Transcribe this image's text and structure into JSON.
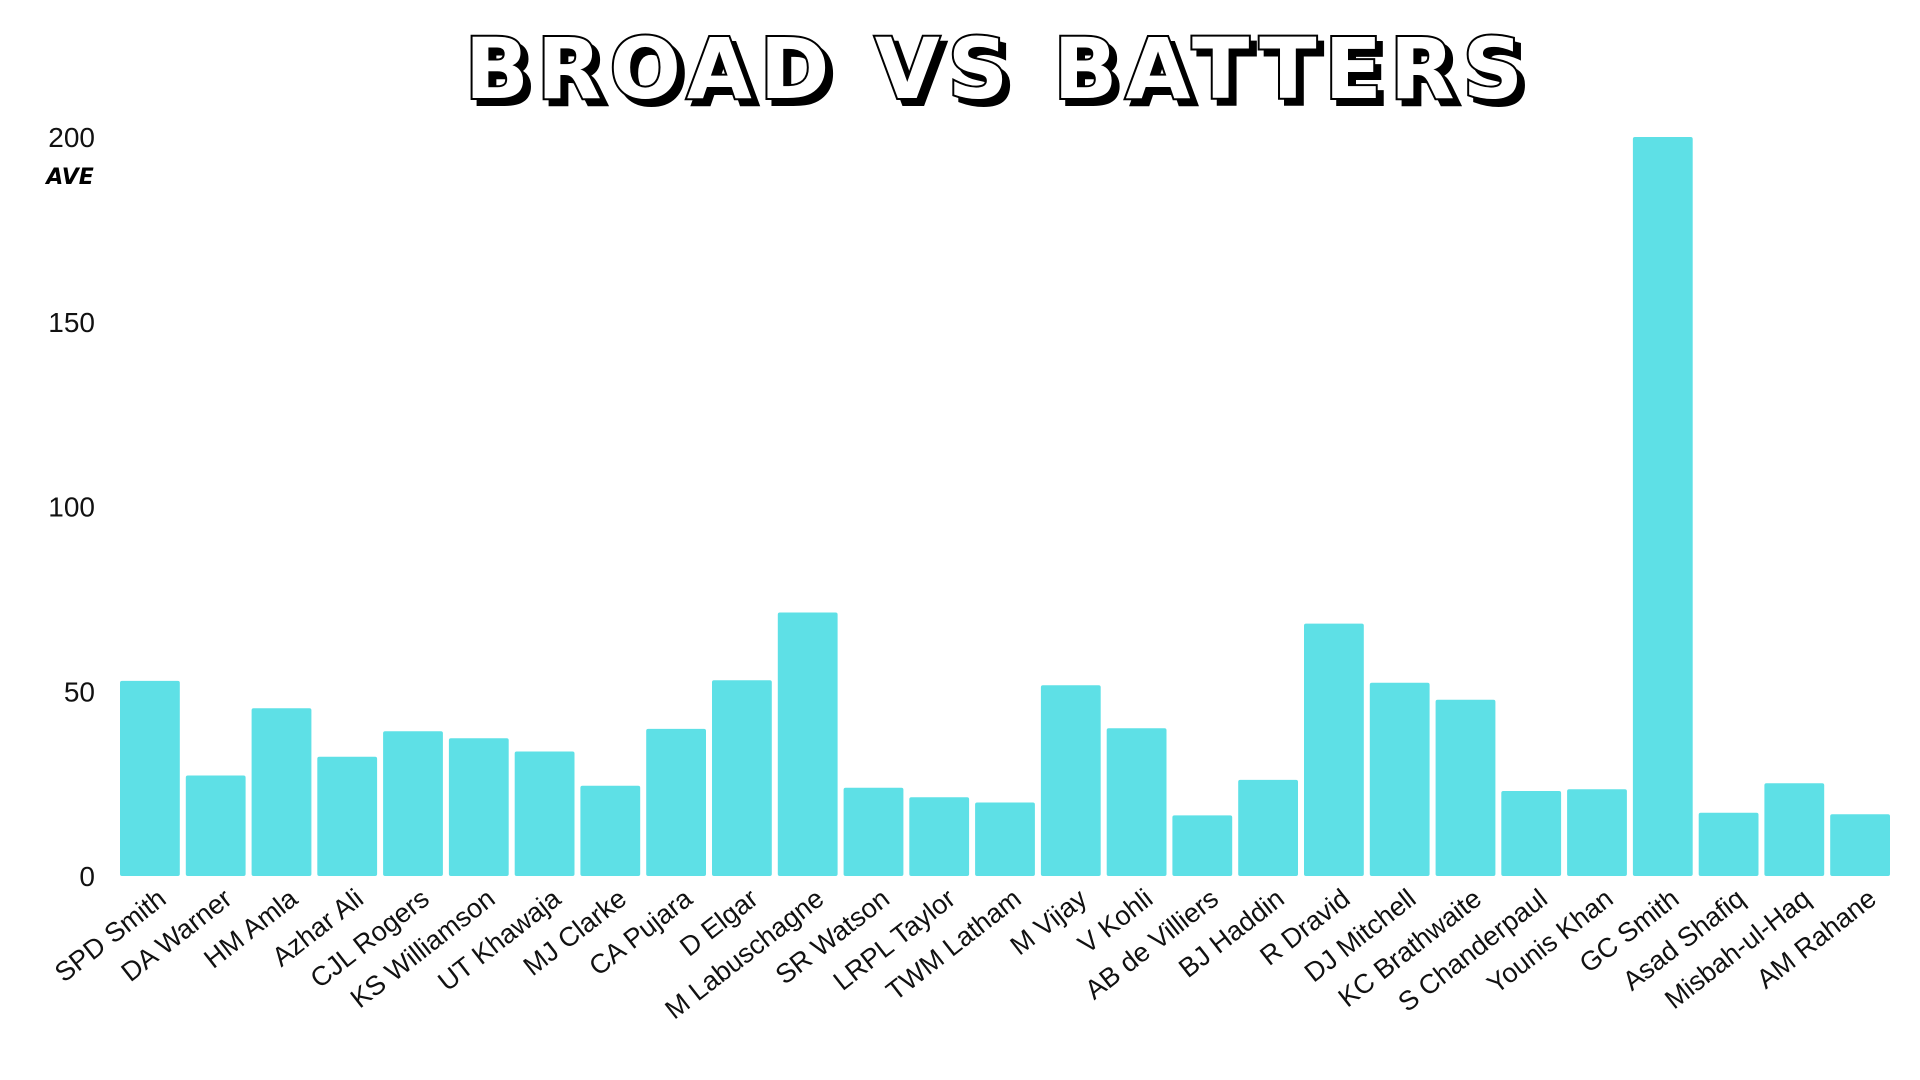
{
  "chart_data": {
    "type": "bar",
    "title": "BROAD VS BATTERS",
    "ylabel": "AVE",
    "xlabel": "",
    "ylim": [
      0,
      200
    ],
    "yticks": [
      0,
      50,
      100,
      150,
      200
    ],
    "grid": false,
    "bar_color": "#5ee0e6",
    "categories": [
      "SPD Smith",
      "DA Warner",
      "HM Amla",
      "Azhar Ali",
      "CJL Rogers",
      "KS Williamson",
      "UT Khawaja",
      "MJ Clarke",
      "CA Pujara",
      "D Elgar",
      "M Labuschagne",
      "SR Watson",
      "LRPL Taylor",
      "TWM Latham",
      "M Vijay",
      "V Kohli",
      "AB de Villiers",
      "BJ Haddin",
      "R Dravid",
      "DJ Mitchell",
      "KC Brathwaite",
      "S Chanderpaul",
      "Younis Khan",
      "GC Smith",
      "Asad Shafiq",
      "Misbah-ul-Haq",
      "AM Rahane"
    ],
    "values": [
      52.8,
      27.2,
      45.4,
      32.3,
      39.2,
      37.3,
      33.7,
      24.4,
      39.8,
      53.0,
      71.3,
      23.9,
      21.3,
      19.9,
      51.6,
      40.0,
      16.4,
      26.0,
      68.3,
      52.3,
      47.7,
      23.0,
      23.5,
      200.0,
      17.1,
      25.1,
      16.7
    ]
  }
}
